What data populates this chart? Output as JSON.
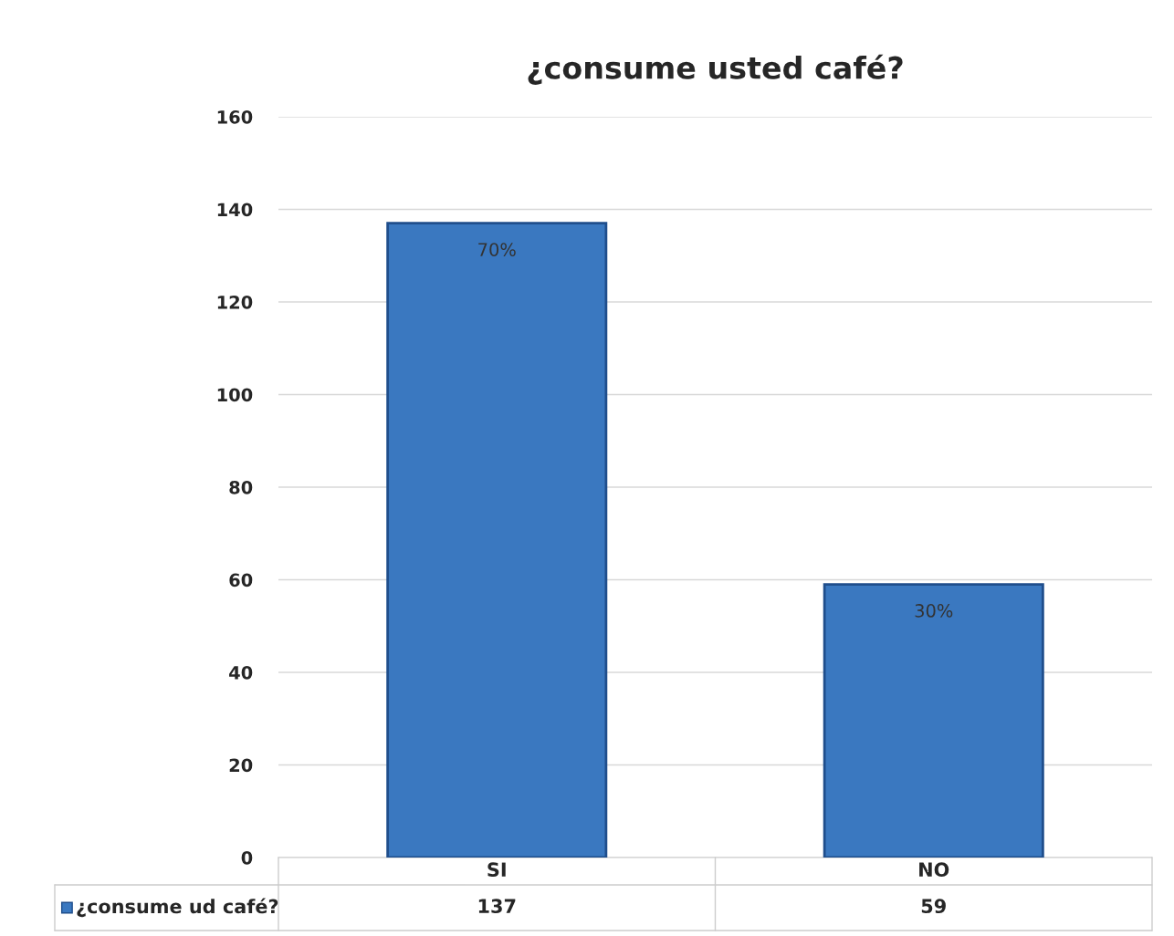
{
  "chart_data": {
    "type": "bar",
    "title": "¿consume usted café?",
    "categories": [
      "SI",
      "NO"
    ],
    "series": [
      {
        "name": "¿consume ud café?",
        "color": "#3a78c0",
        "values": [
          137,
          59
        ]
      }
    ],
    "data_labels": true,
    "annotations": [
      {
        "text": "70%",
        "x": "SI",
        "y": 137
      },
      {
        "text": "30%",
        "x": "NO",
        "y": 59
      }
    ],
    "ylim": [
      0,
      160
    ],
    "yticks": [
      0,
      20,
      40,
      60,
      80,
      100,
      120,
      140,
      160
    ],
    "grid": "y",
    "legend": "bottom"
  }
}
